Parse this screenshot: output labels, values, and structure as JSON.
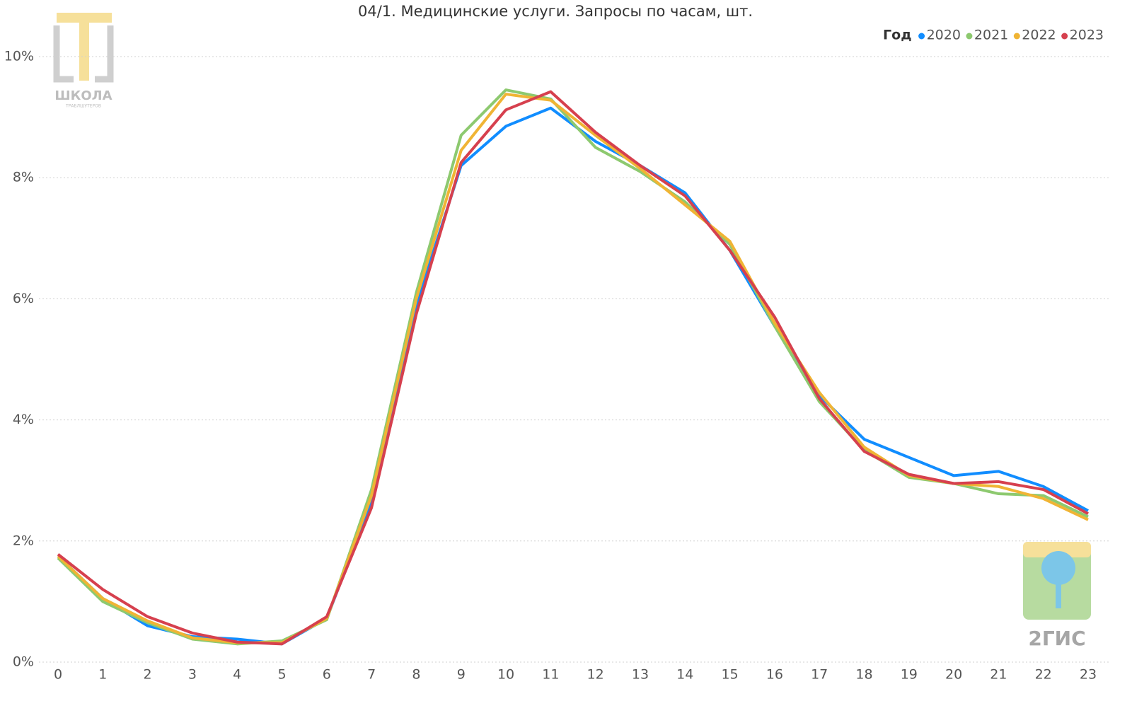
{
  "chart_data": {
    "type": "line",
    "title": "04/1. Медицинские услуги. Запросы по часам, шт.",
    "legend_title": "Год",
    "legend_position": "top-right",
    "x": [
      0,
      1,
      2,
      3,
      4,
      5,
      6,
      7,
      8,
      9,
      10,
      11,
      12,
      13,
      14,
      15,
      16,
      17,
      18,
      19,
      20,
      21,
      22,
      23
    ],
    "xlim": [
      0,
      23
    ],
    "ylim": [
      0,
      10
    ],
    "yticks": [
      {
        "value": 0,
        "label": "0%"
      },
      {
        "value": 2,
        "label": "2%"
      },
      {
        "value": 4,
        "label": "4%"
      },
      {
        "value": 6,
        "label": "6%"
      },
      {
        "value": 8,
        "label": "8%"
      },
      {
        "value": 10,
        "label": "10%"
      }
    ],
    "grid": true,
    "series": [
      {
        "name": "2020",
        "color": "#118dff",
        "values": [
          1.75,
          1.05,
          0.6,
          0.42,
          0.38,
          0.3,
          0.72,
          2.65,
          5.9,
          8.2,
          8.85,
          9.15,
          8.6,
          8.2,
          7.75,
          6.8,
          5.55,
          4.4,
          3.68,
          3.38,
          3.08,
          3.15,
          2.9,
          2.5
        ]
      },
      {
        "name": "2021",
        "color": "#8dc96f",
        "values": [
          1.72,
          1.0,
          0.65,
          0.38,
          0.3,
          0.35,
          0.7,
          2.85,
          6.1,
          8.7,
          9.45,
          9.3,
          8.5,
          8.1,
          7.6,
          6.9,
          5.55,
          4.3,
          3.5,
          3.05,
          2.95,
          2.78,
          2.75,
          2.4
        ]
      },
      {
        "name": "2022",
        "color": "#f0b434",
        "values": [
          1.75,
          1.05,
          0.68,
          0.4,
          0.32,
          0.32,
          0.72,
          2.75,
          6.0,
          8.45,
          9.38,
          9.28,
          8.7,
          8.15,
          7.55,
          6.95,
          5.6,
          4.45,
          3.55,
          3.08,
          2.95,
          2.9,
          2.7,
          2.35
        ]
      },
      {
        "name": "2023",
        "color": "#d6404e",
        "values": [
          1.78,
          1.2,
          0.75,
          0.48,
          0.33,
          0.3,
          0.75,
          2.55,
          5.75,
          8.25,
          9.12,
          9.42,
          8.75,
          8.2,
          7.7,
          6.8,
          5.7,
          4.35,
          3.48,
          3.1,
          2.95,
          2.98,
          2.85,
          2.45
        ]
      }
    ]
  },
  "logos": {
    "school": "ШКОЛА",
    "school_sub": "ТРАБЛШУТЕРОВ",
    "brand": "2ГИС"
  }
}
